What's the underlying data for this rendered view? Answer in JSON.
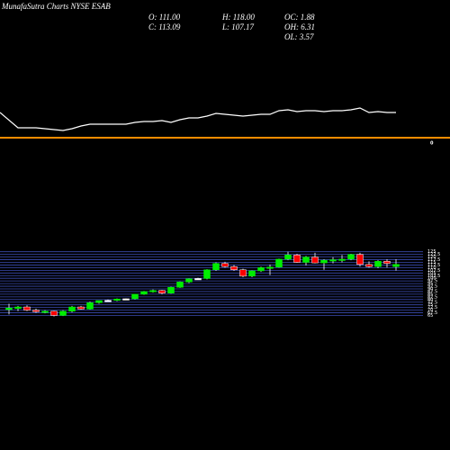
{
  "header": {
    "title": "MunafaSutra Charts NYSE ESAB",
    "stats": [
      [
        "O: 111.00",
        "H: 118.00",
        "OC: 1.88"
      ],
      [
        "C: 113.09",
        "L: 107.17",
        "OH: 6.31"
      ],
      [
        null,
        null,
        "OL: 3.57"
      ]
    ]
  },
  "chart_data": [
    {
      "type": "line",
      "color": "#ffffff",
      "values": [
        28,
        11,
        11,
        11,
        10,
        9,
        8,
        10,
        13,
        15,
        15,
        15,
        15,
        15,
        17,
        18,
        18,
        19,
        17,
        20,
        22,
        22,
        24,
        27,
        26,
        25,
        24,
        25,
        26,
        26,
        30,
        31,
        29,
        30,
        30,
        29,
        30,
        30,
        31,
        33,
        28,
        29,
        28,
        28
      ],
      "ylim": [
        -7,
        53
      ],
      "yticks": [
        0
      ],
      "tick_line_color": "#ff8c00"
    },
    {
      "type": "candlestick",
      "up_color": "#00ee00",
      "down_color": "#ff0000",
      "doji_color": "#ffffff",
      "grid_color": "#3a4bb0",
      "open": [
        70.5,
        71.5,
        73,
        70,
        68.5,
        69,
        65,
        69,
        73,
        71,
        77,
        79,
        79.2,
        80.5,
        80.7,
        85,
        87.5,
        88.5,
        86,
        91.5,
        96.5,
        99.5,
        99.8,
        108,
        114,
        111,
        108,
        102,
        107,
        110,
        110.5,
        118,
        122,
        115,
        120,
        114.5,
        117,
        117.5,
        118,
        122.5,
        113,
        111,
        116,
        111
      ],
      "high": [
        76,
        74,
        74.5,
        71.5,
        70,
        69.5,
        70,
        74,
        74,
        78,
        79,
        80,
        81,
        81,
        85,
        88,
        89.5,
        89,
        92,
        97,
        100,
        100.5,
        108.5,
        115,
        115.5,
        112.5,
        109,
        107.5,
        111,
        113,
        118.5,
        125,
        123,
        121,
        124,
        118,
        120,
        122,
        123,
        124,
        116,
        117,
        118,
        118
      ],
      "low": [
        66,
        69,
        69,
        67.5,
        67,
        64,
        64.5,
        68,
        70.5,
        70.5,
        76,
        78,
        78.5,
        79.5,
        80,
        84.5,
        86.5,
        85,
        85.5,
        91,
        95.5,
        98.5,
        99,
        107,
        110,
        107,
        101,
        101,
        106,
        103,
        110,
        117,
        114.5,
        112,
        114,
        108,
        114,
        115,
        117,
        111,
        110,
        109.5,
        110,
        107.17
      ],
      "close": [
        72,
        73,
        70,
        68.5,
        69,
        65,
        69,
        73,
        71,
        77,
        79,
        79.2,
        80.5,
        80.7,
        85,
        87.5,
        88.5,
        86,
        91.5,
        96.5,
        99.5,
        99.8,
        108,
        114,
        111,
        108,
        102,
        107,
        110,
        110.5,
        118,
        122,
        115,
        120,
        114.5,
        117,
        117.5,
        118,
        122.5,
        113,
        111,
        116,
        114,
        113.09
      ],
      "ylim": [
        40,
        140
      ],
      "yticks": [
        65,
        67.5,
        70,
        72.5,
        75,
        77.5,
        80,
        82.5,
        85,
        87.5,
        90,
        92.5,
        95,
        97.5,
        100,
        102.5,
        105,
        107.5,
        110,
        112.5,
        115,
        117.5,
        120,
        122.5,
        125
      ]
    }
  ]
}
